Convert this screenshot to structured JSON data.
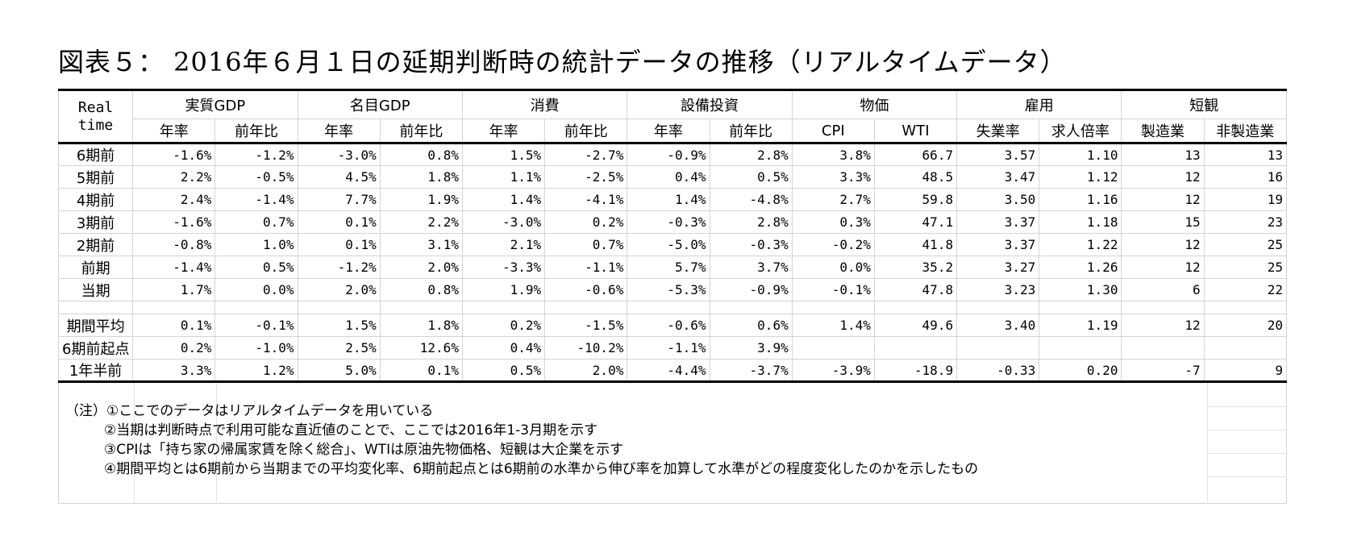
{
  "title": "図表５： 2016年６月１日の延期判断時の統計データの推移（リアルタイムデータ）",
  "header": {
    "realtime_line1": "Real",
    "realtime_line2": "time",
    "groups": [
      "実質GDP",
      "名目GDP",
      "消費",
      "設備投資",
      "物価",
      "雇用",
      "短観"
    ],
    "subheaders": [
      "年率",
      "前年比",
      "年率",
      "前年比",
      "年率",
      "前年比",
      "年率",
      "前年比",
      "CPI",
      "WTI",
      "失業率",
      "求人倍率",
      "製造業",
      "非製造業"
    ]
  },
  "rows": [
    {
      "label": "6期前",
      "values": [
        "-1.6%",
        "-1.2%",
        "-3.0%",
        "0.8%",
        "1.5%",
        "-2.7%",
        "-0.9%",
        "2.8%",
        "3.8%",
        "66.7",
        "3.57",
        "1.10",
        "13",
        "13"
      ]
    },
    {
      "label": "5期前",
      "values": [
        "2.2%",
        "-0.5%",
        "4.5%",
        "1.8%",
        "1.1%",
        "-2.5%",
        "0.4%",
        "0.5%",
        "3.3%",
        "48.5",
        "3.47",
        "1.12",
        "12",
        "16"
      ]
    },
    {
      "label": "4期前",
      "values": [
        "2.4%",
        "-1.4%",
        "7.7%",
        "1.9%",
        "1.4%",
        "-4.1%",
        "1.4%",
        "-4.8%",
        "2.7%",
        "59.8",
        "3.50",
        "1.16",
        "12",
        "19"
      ]
    },
    {
      "label": "3期前",
      "values": [
        "-1.6%",
        "0.7%",
        "0.1%",
        "2.2%",
        "-3.0%",
        "0.2%",
        "-0.3%",
        "2.8%",
        "0.3%",
        "47.1",
        "3.37",
        "1.18",
        "15",
        "23"
      ]
    },
    {
      "label": "2期前",
      "values": [
        "-0.8%",
        "1.0%",
        "0.1%",
        "3.1%",
        "2.1%",
        "0.7%",
        "-5.0%",
        "-0.3%",
        "-0.2%",
        "41.8",
        "3.37",
        "1.22",
        "12",
        "25"
      ]
    },
    {
      "label": "前期",
      "values": [
        "-1.4%",
        "0.5%",
        "-1.2%",
        "2.0%",
        "-3.3%",
        "-1.1%",
        "5.7%",
        "3.7%",
        "0.0%",
        "35.2",
        "3.27",
        "1.26",
        "12",
        "25"
      ]
    },
    {
      "label": "当期",
      "values": [
        "1.7%",
        "0.0%",
        "2.0%",
        "0.8%",
        "1.9%",
        "-0.6%",
        "-5.3%",
        "-0.9%",
        "-0.1%",
        "47.8",
        "3.23",
        "1.30",
        "6",
        "22"
      ]
    }
  ],
  "summary_rows": [
    {
      "label": "期間平均",
      "values": [
        "0.1%",
        "-0.1%",
        "1.5%",
        "1.8%",
        "0.2%",
        "-1.5%",
        "-0.6%",
        "0.6%",
        "1.4%",
        "49.6",
        "3.40",
        "1.19",
        "12",
        "20"
      ]
    },
    {
      "label": "6期前起点",
      "values": [
        "0.2%",
        "-1.0%",
        "2.5%",
        "12.6%",
        "0.4%",
        "-10.2%",
        "-1.1%",
        "3.9%",
        "",
        "",
        "",
        "",
        "",
        ""
      ]
    },
    {
      "label": "1年半前",
      "values": [
        "3.3%",
        "1.2%",
        "5.0%",
        "0.1%",
        "0.5%",
        "2.0%",
        "-4.4%",
        "-3.7%",
        "-3.9%",
        "-18.9",
        "-0.33",
        "0.20",
        "-7",
        "9"
      ]
    }
  ],
  "notes": [
    "（注）①ここでのデータはリアルタイムデータを用いている",
    "②当期は判断時点で利用可能な直近値のことで、ここでは2016年1-3月期を示す",
    "③CPIは「持ち家の帰属家賃を除く総合」、WTIは原油先物価格、短観は大企業を示す",
    "④期間平均とは6期前から当期までの平均変化率、6期前起点とは6期前の水準から伸び率を加算して水準がどの程度変化したのかを示したもの"
  ]
}
